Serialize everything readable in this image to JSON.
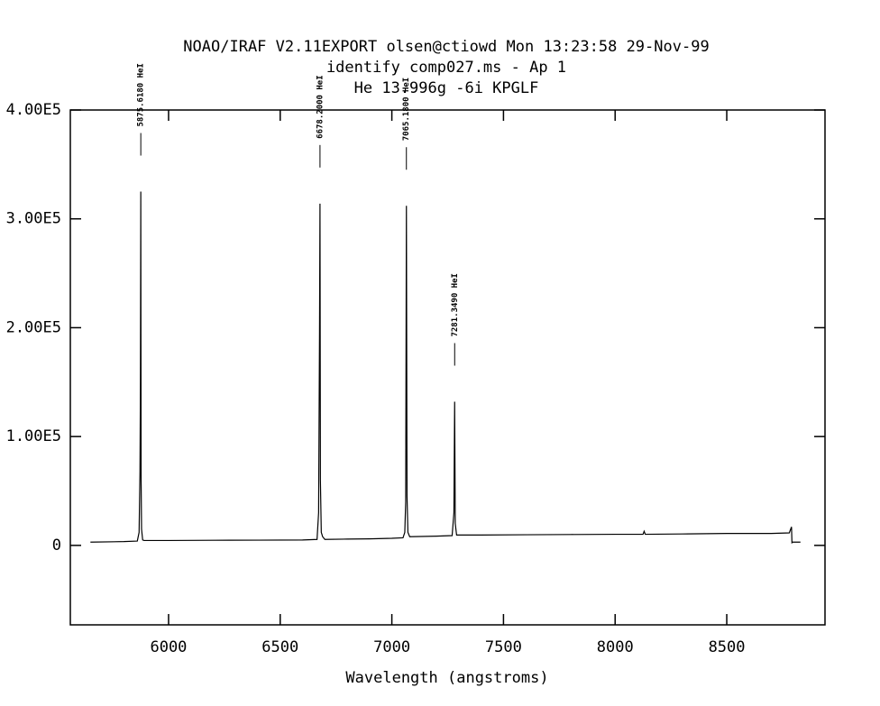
{
  "chart_data": {
    "type": "line",
    "title": [
      "NOAO/IRAF V2.11EXPORT olsen@ctiowd Mon 13:23:58 29-Nov-99",
      "identify comp027.ms - Ap 1",
      "He 13.996g -6i KPGLF"
    ],
    "xlabel": "Wavelength (angstroms)",
    "xlim": [
      5560,
      8940
    ],
    "ylim": [
      -73000,
      400000
    ],
    "xticks": [
      6000,
      6500,
      7000,
      7500,
      8000,
      8500
    ],
    "yticks": [
      0,
      {
        "value": 100000,
        "label": "1.00E5"
      },
      {
        "value": 200000,
        "label": "2.00E5"
      },
      {
        "value": 300000,
        "label": "3.00E5"
      },
      {
        "value": 400000,
        "label": "4.00E5"
      }
    ],
    "color": "#000000",
    "x": [
      5650,
      5800,
      5860,
      5868,
      5872,
      5874,
      5875.6,
      5877,
      5879,
      5884,
      5890,
      6000,
      6200,
      6400,
      6600,
      6665,
      6672,
      6676,
      6678.2,
      6680,
      6684,
      6690,
      6700,
      6800,
      6900,
      7000,
      7050,
      7058,
      7062,
      7065.2,
      7068,
      7072,
      7080,
      7200,
      7270,
      7278,
      7281.3,
      7284,
      7290,
      7400,
      7600,
      7800,
      8000,
      8125,
      8130,
      8135,
      8300,
      8500,
      8700,
      8780,
      8790,
      8792,
      8795,
      8830
    ],
    "values": [
      3000,
      3500,
      4000,
      12000,
      68000,
      150000,
      325000,
      60000,
      15000,
      5000,
      4500,
      4500,
      4700,
      4800,
      5000,
      5500,
      30000,
      190000,
      314000,
      60000,
      12000,
      8000,
      5500,
      5800,
      6000,
      6500,
      7000,
      12000,
      40000,
      312000,
      45000,
      12000,
      8000,
      8500,
      9000,
      30000,
      132000,
      20000,
      9500,
      9500,
      9800,
      10000,
      10200,
      10200,
      13000,
      10200,
      10500,
      11000,
      11000,
      11500,
      17000,
      2500,
      3000,
      3000
    ],
    "annotations": [
      {
        "x": 5875.618,
        "y": 325000,
        "label": "5875.6180 HeI"
      },
      {
        "x": 6678.2,
        "y": 314000,
        "label": "6678.2000 HeI"
      },
      {
        "x": 7065.18,
        "y": 312000,
        "label": "7065.1800 HeI"
      },
      {
        "x": 7281.349,
        "y": 132000,
        "label": "7281.3490 HeI"
      }
    ]
  }
}
